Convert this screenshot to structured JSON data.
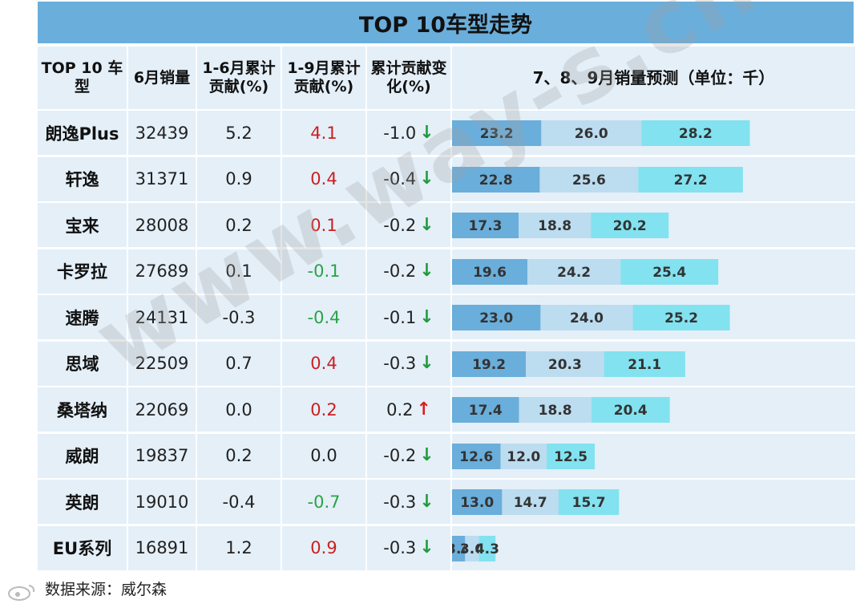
{
  "title": "TOP 10车型走势",
  "headers": {
    "model": "TOP 10 车型",
    "june_sales": "6月销量",
    "contrib_1_6": "1-6月累计贡献(%)",
    "contrib_1_9": "1-9月累计贡献(%)",
    "contrib_change": "累计贡献变化(%)",
    "forecast": "7、8、9月销量预测（单位：千）"
  },
  "rows": [
    {
      "model": "朗逸Plus",
      "june_sales": "32439",
      "contrib_1_6": "5.2",
      "contrib_1_9": "4.1",
      "change": "-1.0",
      "direction": "down"
    },
    {
      "model": "轩逸",
      "june_sales": "31371",
      "contrib_1_6": "0.9",
      "contrib_1_9": "0.4",
      "change": "-0.4",
      "direction": "down"
    },
    {
      "model": "宝来",
      "june_sales": "28008",
      "contrib_1_6": "0.2",
      "contrib_1_9": "0.1",
      "change": "-0.2",
      "direction": "down"
    },
    {
      "model": "卡罗拉",
      "june_sales": "27689",
      "contrib_1_6": "0.1",
      "contrib_1_9": "-0.1",
      "change": "-0.2",
      "direction": "down"
    },
    {
      "model": "速腾",
      "june_sales": "24131",
      "contrib_1_6": "-0.3",
      "contrib_1_9": "-0.4",
      "change": "-0.1",
      "direction": "down"
    },
    {
      "model": "思域",
      "june_sales": "22509",
      "contrib_1_6": "0.7",
      "contrib_1_9": "0.4",
      "change": "-0.3",
      "direction": "down"
    },
    {
      "model": "桑塔纳",
      "june_sales": "22069",
      "contrib_1_6": "0.0",
      "contrib_1_9": "0.2",
      "change": "0.2",
      "direction": "up"
    },
    {
      "model": "威朗",
      "june_sales": "19837",
      "contrib_1_6": "0.2",
      "contrib_1_9": "0.0",
      "change": "-0.2",
      "direction": "down"
    },
    {
      "model": "英朗",
      "june_sales": "19010",
      "contrib_1_6": "-0.4",
      "contrib_1_9": "-0.7",
      "change": "-0.3",
      "direction": "down"
    },
    {
      "model": "EU系列",
      "june_sales": "16891",
      "contrib_1_6": "1.2",
      "contrib_1_9": "0.9",
      "change": "-0.3",
      "direction": "down"
    }
  ],
  "colors": {
    "title_bg": "#6aaedb",
    "cell_bg": "#e4eff8",
    "positive": "#cc1f1f",
    "negative": "#2aa347",
    "arrow_down": "#1f9c3c",
    "arrow_up": "#d81e1e",
    "bar_july": "#6aaedb",
    "bar_aug": "#bcdcf0",
    "bar_sep": "#82e2f0"
  },
  "chart_data": {
    "type": "bar",
    "stacked": true,
    "orientation": "horizontal",
    "title": "7、8、9月销量预测（单位：千）",
    "categories": [
      "朗逸Plus",
      "轩逸",
      "宝来",
      "卡罗拉",
      "速腾",
      "思域",
      "桑塔纳",
      "威朗",
      "英朗",
      "EU系列"
    ],
    "series": [
      {
        "values": [
          23.2,
          22.8,
          17.3,
          19.6,
          23.0,
          19.2,
          17.4,
          12.6,
          13.0,
          3.4
        ]
      },
      {
        "values": [
          26.0,
          25.6,
          18.8,
          24.2,
          24.0,
          20.3,
          18.8,
          12.0,
          14.7,
          3.6
        ]
      },
      {
        "values": [
          28.2,
          27.2,
          20.2,
          25.4,
          25.2,
          21.1,
          20.4,
          12.5,
          15.7,
          4.3
        ]
      }
    ],
    "data_labels": true,
    "grid": false,
    "legend": "none"
  },
  "source": "数据来源：威尔森",
  "watermark": "www.way-s.cn"
}
